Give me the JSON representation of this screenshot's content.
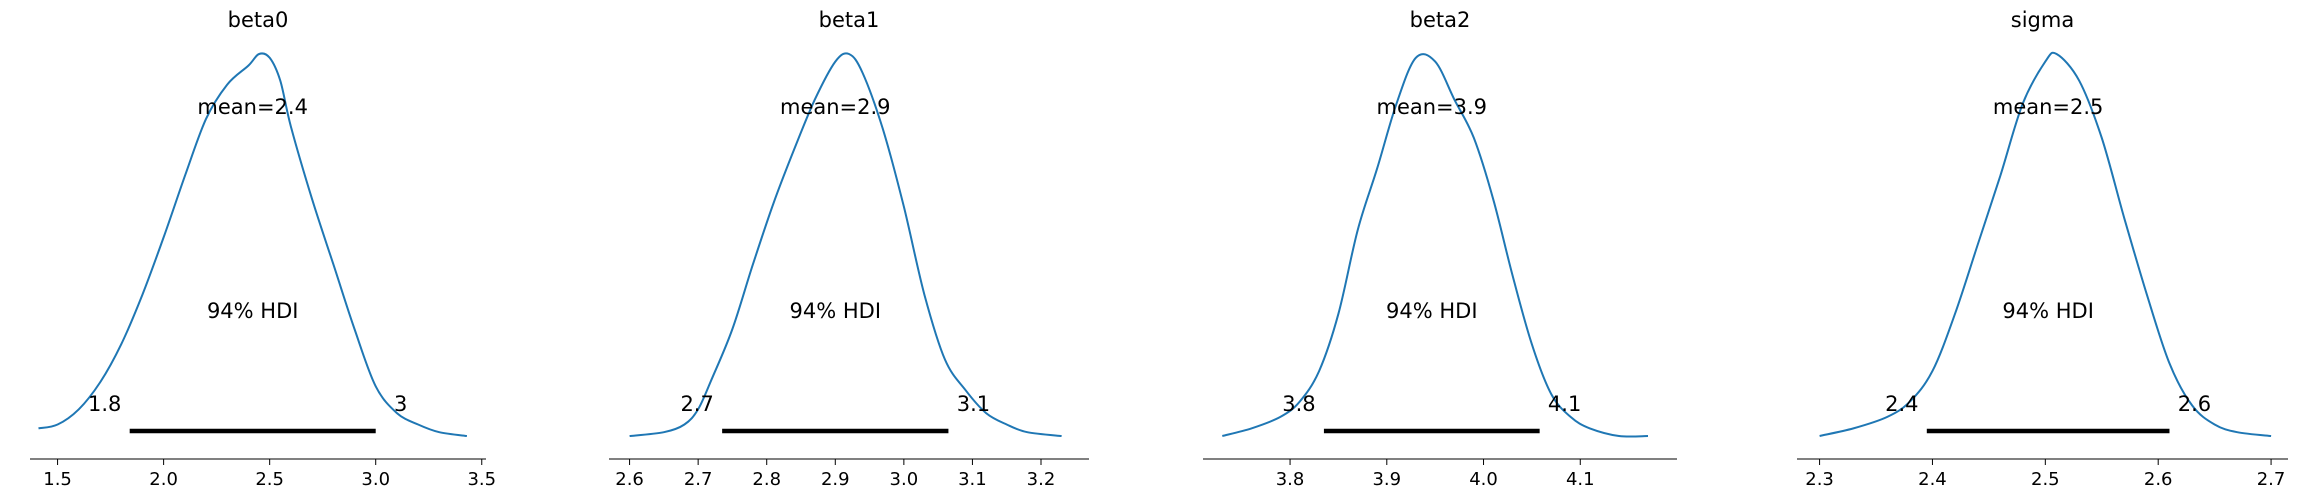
{
  "chart_data": [
    {
      "type": "line",
      "title": "beta0",
      "xlim": [
        1.37,
        3.52
      ],
      "xticks": [
        1.5,
        2.0,
        2.5,
        3.0,
        3.5
      ],
      "xtick_labels": [
        "1.5",
        "2.0",
        "2.5",
        "3.0",
        "3.5"
      ],
      "mean_label": "mean=2.4",
      "hdi_label": "94% HDI",
      "hdi": [
        1.84,
        3.0
      ],
      "hdi_low_label": "1.8",
      "hdi_high_label": "3",
      "density": {
        "x": [
          1.41,
          1.5,
          1.6,
          1.7,
          1.8,
          1.9,
          2.0,
          2.1,
          2.2,
          2.3,
          2.4,
          2.45,
          2.5,
          2.55,
          2.6,
          2.7,
          2.8,
          2.9,
          3.0,
          3.1,
          3.2,
          3.3,
          3.43
        ],
        "y": [
          0.02,
          0.03,
          0.07,
          0.14,
          0.24,
          0.37,
          0.52,
          0.68,
          0.83,
          0.92,
          0.97,
          1.0,
          0.99,
          0.93,
          0.81,
          0.62,
          0.45,
          0.28,
          0.13,
          0.06,
          0.03,
          0.01,
          0.0
        ]
      }
    },
    {
      "type": "line",
      "title": "beta1",
      "xlim": [
        2.57,
        3.27
      ],
      "xticks": [
        2.6,
        2.7,
        2.8,
        2.9,
        3.0,
        3.1,
        3.2
      ],
      "xtick_labels": [
        "2.6",
        "2.7",
        "2.8",
        "2.9",
        "3.0",
        "3.1",
        "3.2"
      ],
      "mean_label": "mean=2.9",
      "hdi_label": "94% HDI",
      "hdi": [
        2.735,
        3.065
      ],
      "hdi_low_label": "2.7",
      "hdi_high_label": "3.1",
      "density": {
        "x": [
          2.6,
          2.65,
          2.68,
          2.7,
          2.72,
          2.75,
          2.78,
          2.81,
          2.84,
          2.87,
          2.9,
          2.92,
          2.94,
          2.97,
          3.0,
          3.03,
          3.06,
          3.09,
          3.12,
          3.15,
          3.18,
          3.23
        ],
        "y": [
          0.0,
          0.01,
          0.03,
          0.07,
          0.15,
          0.28,
          0.45,
          0.61,
          0.75,
          0.88,
          0.98,
          1.0,
          0.95,
          0.8,
          0.6,
          0.37,
          0.2,
          0.12,
          0.06,
          0.03,
          0.01,
          0.0
        ]
      }
    },
    {
      "type": "line",
      "title": "beta2",
      "xlim": [
        3.71,
        4.2
      ],
      "xticks": [
        3.8,
        3.9,
        4.0,
        4.1
      ],
      "xtick_labels": [
        "3.8",
        "3.9",
        "4.0",
        "4.1"
      ],
      "mean_label": "mean=3.9",
      "hdi_label": "94% HDI",
      "hdi": [
        3.835,
        4.058
      ],
      "hdi_low_label": "3.8",
      "hdi_high_label": "4.1",
      "density": {
        "x": [
          3.73,
          3.76,
          3.79,
          3.81,
          3.83,
          3.85,
          3.87,
          3.89,
          3.91,
          3.93,
          3.95,
          3.97,
          3.99,
          4.01,
          4.03,
          4.05,
          4.07,
          4.09,
          4.11,
          4.14,
          4.17
        ],
        "y": [
          0.0,
          0.02,
          0.05,
          0.09,
          0.17,
          0.32,
          0.54,
          0.7,
          0.87,
          0.99,
          0.98,
          0.88,
          0.78,
          0.62,
          0.42,
          0.24,
          0.11,
          0.05,
          0.02,
          0.0,
          0.0
        ]
      }
    },
    {
      "type": "line",
      "title": "sigma",
      "xlim": [
        2.28,
        2.715
      ],
      "xticks": [
        2.3,
        2.4,
        2.5,
        2.6,
        2.7
      ],
      "xtick_labels": [
        "2.3",
        "2.4",
        "2.5",
        "2.6",
        "2.7"
      ],
      "mean_label": "mean=2.5",
      "hdi_label": "94% HDI",
      "hdi": [
        2.395,
        2.61
      ],
      "hdi_low_label": "2.4",
      "hdi_high_label": "2.6",
      "density": {
        "x": [
          2.3,
          2.33,
          2.36,
          2.38,
          2.4,
          2.42,
          2.44,
          2.46,
          2.48,
          2.5,
          2.51,
          2.53,
          2.55,
          2.57,
          2.59,
          2.61,
          2.63,
          2.65,
          2.67,
          2.7
        ],
        "y": [
          0.0,
          0.02,
          0.05,
          0.09,
          0.17,
          0.32,
          0.5,
          0.68,
          0.87,
          0.98,
          1.0,
          0.93,
          0.78,
          0.57,
          0.37,
          0.19,
          0.08,
          0.03,
          0.01,
          0.0
        ]
      }
    }
  ]
}
